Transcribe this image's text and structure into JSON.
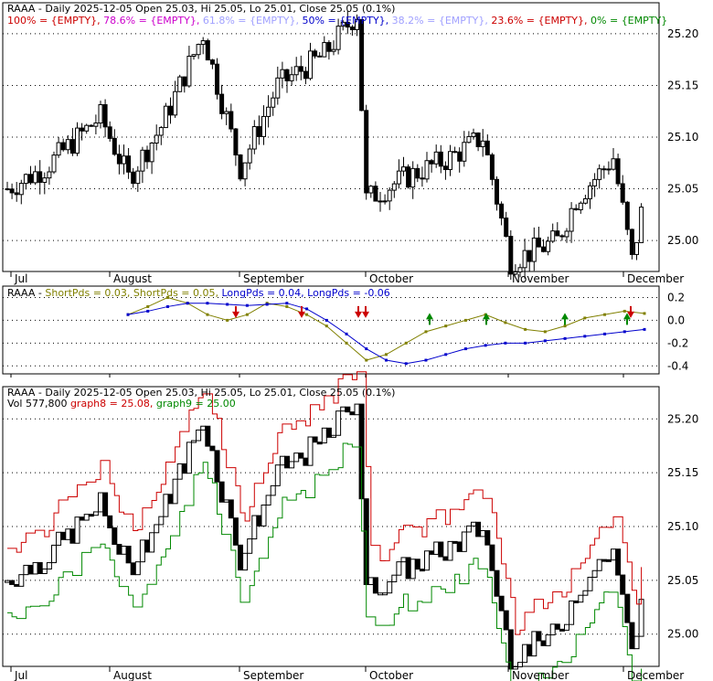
{
  "chart_data": [
    {
      "type": "candlestick",
      "title": "RAAA - Daily 2025-12-05 Open 25.03, Hi 25.05, Lo 25.01, Close 25.05 (0.1%)",
      "fib_legend": [
        {
          "text": "100% = {EMPTY},",
          "color": "#cc0000"
        },
        {
          "text": "78.6% = {EMPTY},",
          "color": "#cc00cc"
        },
        {
          "text": "61.8% = {EMPTY},",
          "color": "#a0a0ff"
        },
        {
          "text": "50% = {EMPTY},",
          "color": "#0000cc"
        },
        {
          "text": "38.2% = {EMPTY},",
          "color": "#a0a0ff"
        },
        {
          "text": "23.6% = {EMPTY},",
          "color": "#cc0000"
        },
        {
          "text": "0% = {EMPTY}",
          "color": "#008800"
        }
      ],
      "x_labels": [
        "Jul",
        "August",
        "September",
        "October",
        "November",
        "December"
      ],
      "y_ticks": [
        "25.20",
        "25.15",
        "25.10",
        "25.05",
        "25.00"
      ],
      "ylim": [
        24.97,
        25.23
      ],
      "grid": true
    },
    {
      "type": "line",
      "title": "RAAA - ShortPds = 0.03, ShortPds = 0.05, LongPds = 0.04, LongPds = -0.06",
      "legend": [
        {
          "text": "RAAA - ",
          "color": "#000000"
        },
        {
          "text": "ShortPds = 0.03,",
          "color": "#808000"
        },
        {
          "text": "ShortPds = 0.05,",
          "color": "#808000"
        },
        {
          "text": "LongPds = 0.04,",
          "color": "#0000cc"
        },
        {
          "text": "LongPds = -0.06",
          "color": "#0000cc"
        }
      ],
      "y_ticks": [
        "0.2",
        "0.0",
        "-0.2",
        "-0.4"
      ],
      "ylim": [
        -0.47,
        0.3
      ],
      "series": [
        {
          "name": "ShortPds",
          "color": "#808000",
          "values": [
            0.05,
            0.12,
            0.2,
            0.15,
            0.05,
            0.0,
            0.05,
            0.15,
            0.12,
            0.05,
            -0.05,
            -0.2,
            -0.35,
            -0.3,
            -0.2,
            -0.1,
            -0.05,
            0.0,
            0.05,
            -0.02,
            -0.08,
            -0.1,
            -0.05,
            0.02,
            0.05,
            0.08,
            0.06
          ]
        },
        {
          "name": "LongPds",
          "color": "#0000cc",
          "values": [
            0.05,
            0.08,
            0.12,
            0.15,
            0.15,
            0.14,
            0.13,
            0.14,
            0.15,
            0.1,
            0.0,
            -0.12,
            -0.25,
            -0.35,
            -0.38,
            -0.35,
            -0.3,
            -0.25,
            -0.22,
            -0.2,
            -0.2,
            -0.18,
            -0.16,
            -0.14,
            -0.12,
            -0.1,
            -0.08
          ]
        }
      ],
      "grid": true
    },
    {
      "type": "line_break",
      "title": "RAAA - Daily 2025-12-05 Open 25.03, Hi 25.05, Lo 25.01, Close 25.05 (0.1%)",
      "legend": [
        {
          "text": "Vol 577,800",
          "color": "#000000"
        },
        {
          "text": "graph8 = 25.08,",
          "color": "#cc0000"
        },
        {
          "text": "graph9 = 25.00",
          "color": "#008800"
        }
      ],
      "x_labels": [
        "Jul",
        "August",
        "September",
        "October",
        "November",
        "December"
      ],
      "y_ticks": [
        "25.20",
        "25.15",
        "25.10",
        "25.05",
        "25.00"
      ],
      "ylim": [
        24.97,
        25.23
      ],
      "series": [
        {
          "name": "graph8",
          "color": "#cc0000"
        },
        {
          "name": "graph9",
          "color": "#008800"
        }
      ],
      "grid": true
    }
  ]
}
